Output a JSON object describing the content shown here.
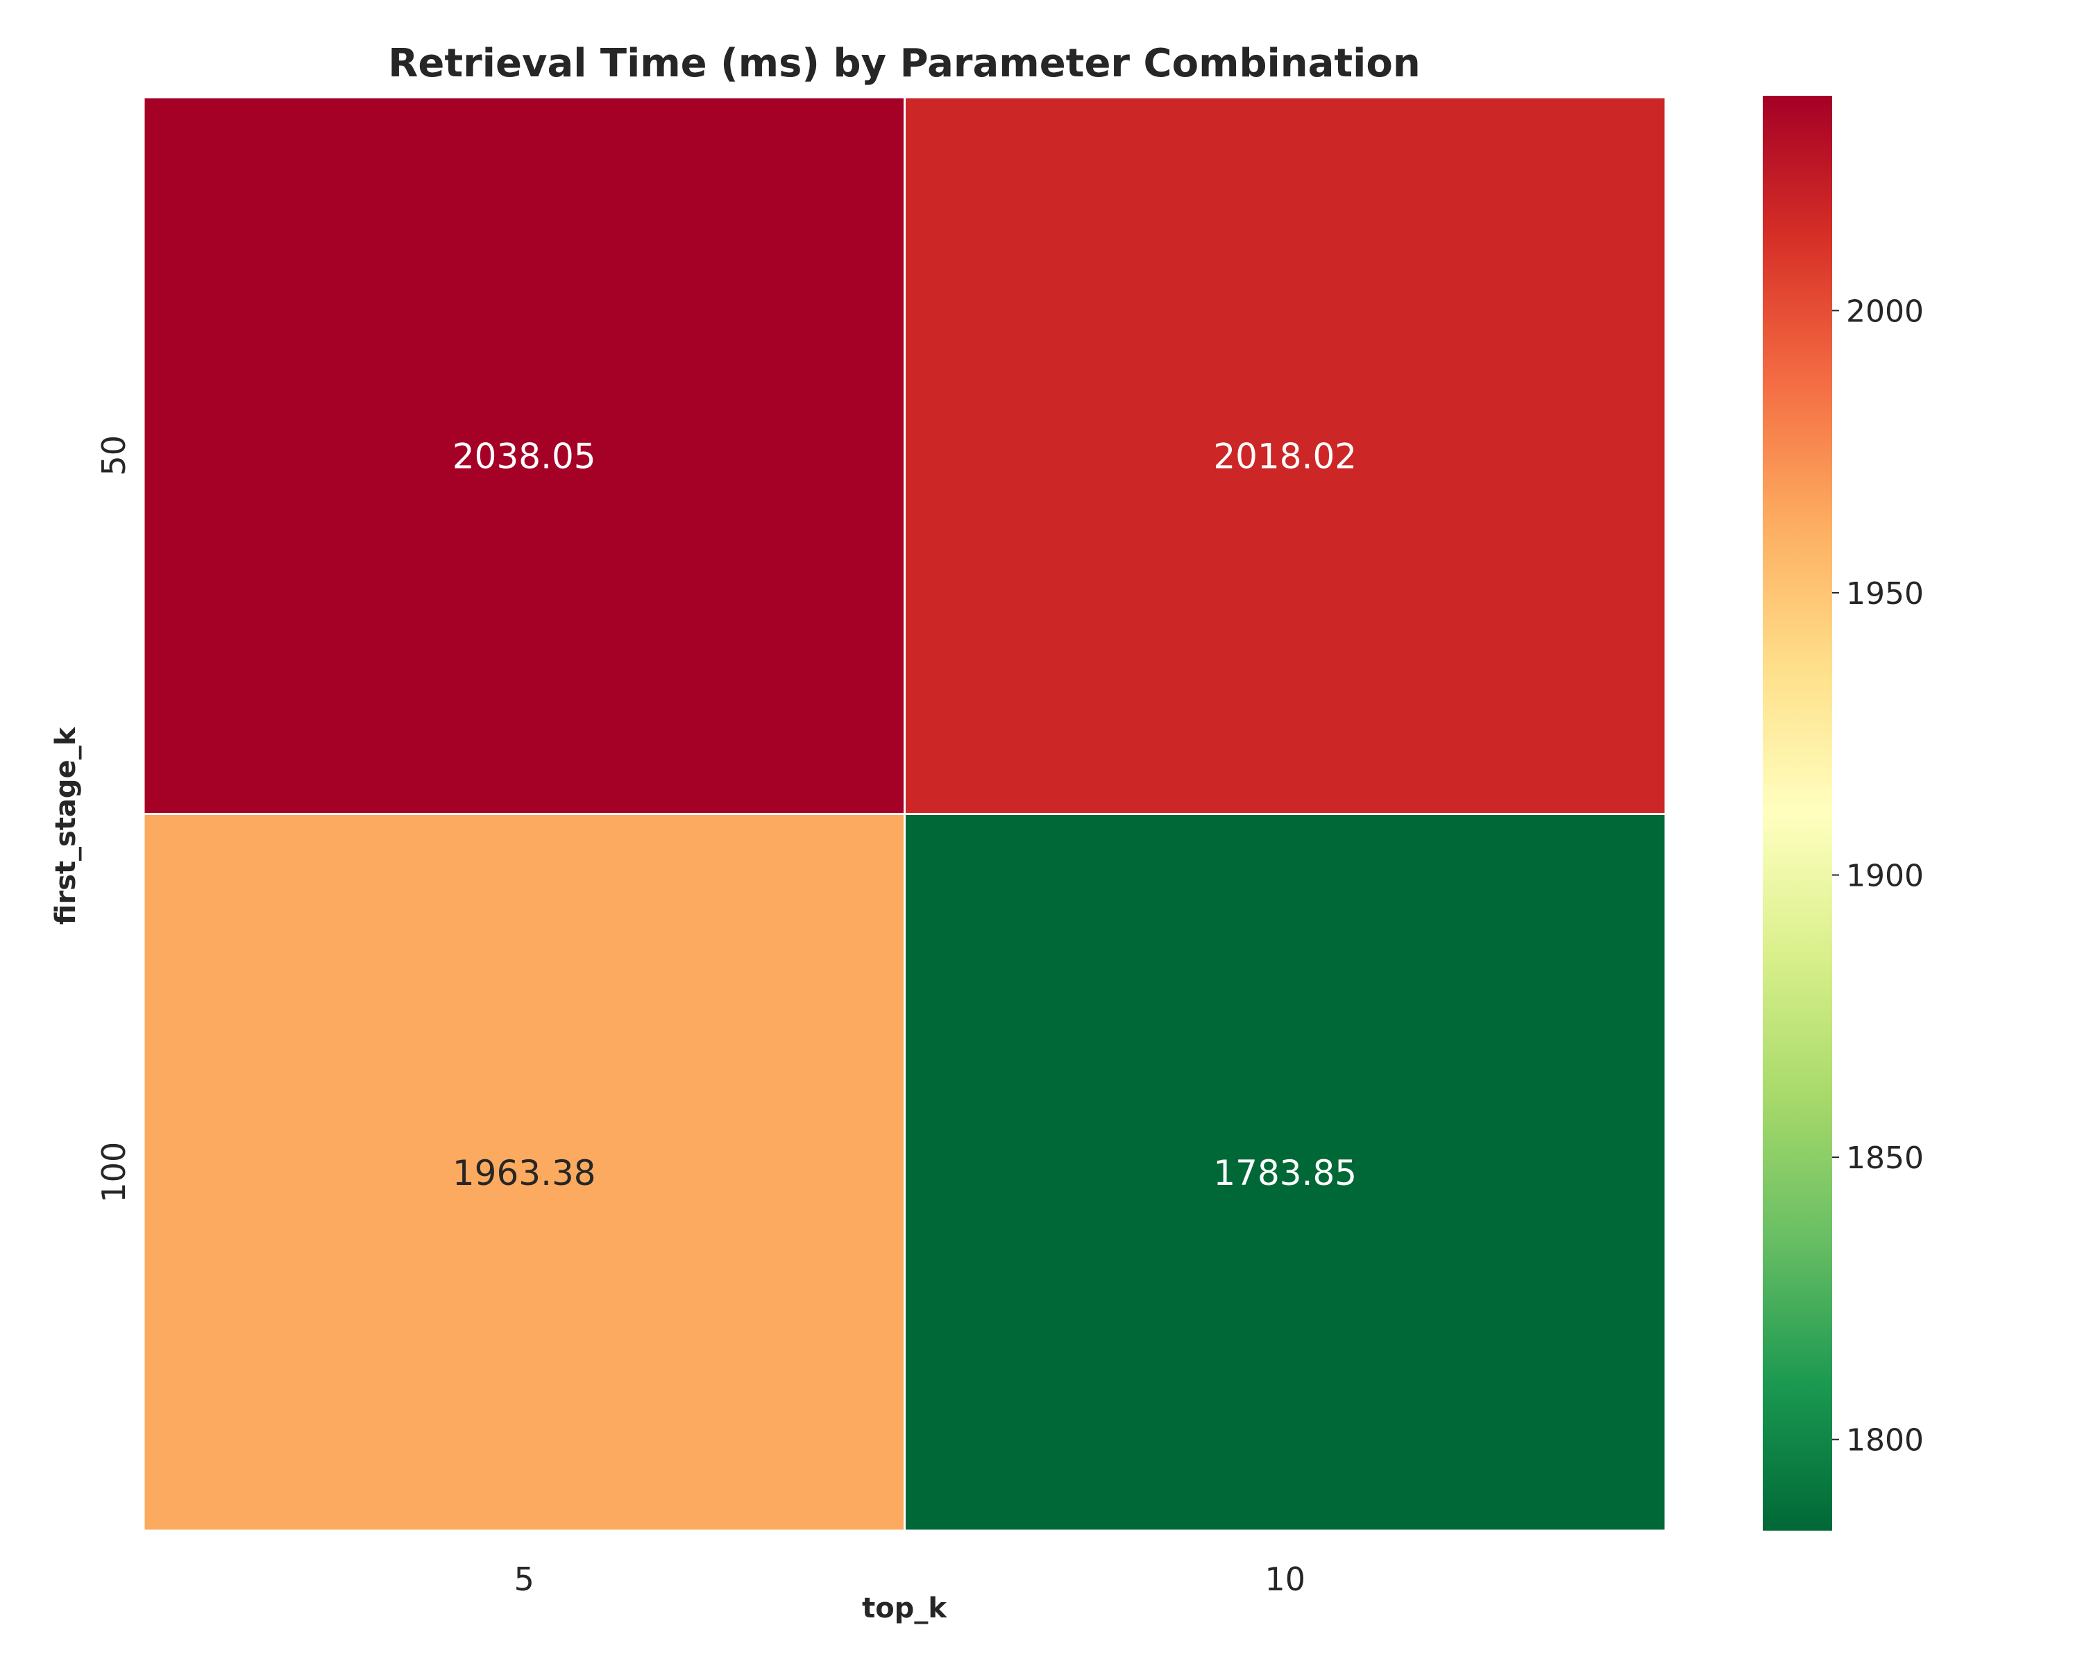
{
  "chart_data": {
    "type": "heatmap",
    "title": "Retrieval Time (ms) by Parameter Combination",
    "xlabel": "top_k",
    "ylabel": "first_stage_k",
    "x_categories": [
      "5",
      "10"
    ],
    "y_categories": [
      "50",
      "100"
    ],
    "values": [
      [
        2038.05,
        2018.02
      ],
      [
        1963.38,
        1783.85
      ]
    ],
    "value_labels": [
      [
        "2038.05",
        "2018.02"
      ],
      [
        "1963.38",
        "1783.85"
      ]
    ],
    "colormap": "RdYlGn_r",
    "colorbar": {
      "range": [
        1783.85,
        2038.05
      ],
      "ticks": [
        1800,
        1850,
        1900,
        1950,
        2000
      ],
      "tick_labels": [
        "1800",
        "1850",
        "1900",
        "1950",
        "2000"
      ]
    },
    "legend": "colorbar-right",
    "colors": {
      "text_dark": "#262626",
      "text_light": "#ffffff",
      "cell_border": "#ffffff"
    }
  }
}
